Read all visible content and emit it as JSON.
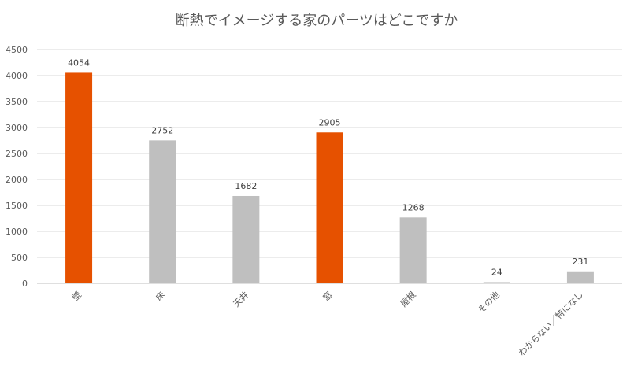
{
  "chart_data": {
    "type": "bar",
    "title": "断熱でイメージする家のパーツはどこですか",
    "xlabel": "",
    "ylabel": "",
    "categories": [
      "壁",
      "床",
      "天井",
      "窓",
      "屋根",
      "その他",
      "わからない／特になし"
    ],
    "values": [
      4054,
      2752,
      1682,
      2905,
      1268,
      24,
      231
    ],
    "ylim": [
      0,
      4500
    ],
    "yticks": [
      "0",
      "500",
      "1000",
      "1500",
      "2000",
      "2500",
      "3000",
      "3500",
      "4000",
      "4500"
    ],
    "data_labels": [
      "4054",
      "2752",
      "1682",
      "2905",
      "1268",
      "24",
      "231"
    ],
    "grid": true,
    "legend": "none",
    "colors": {
      "highlight": "#e65100",
      "default": "#bfbfbf",
      "highlight_categories": [
        "壁",
        "窓"
      ]
    }
  }
}
